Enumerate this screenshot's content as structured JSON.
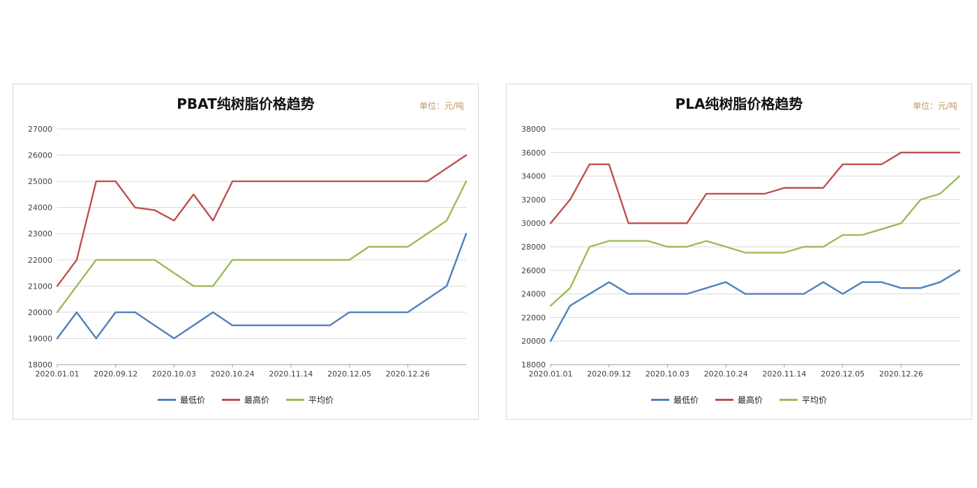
{
  "colors": {
    "unit_text": "#C09A5E",
    "gridline": "#d9d9d9",
    "axis_line": "#9e9e9e",
    "series_min": "#4F81BD",
    "series_max": "#C0504D",
    "series_avg": "#9BBB59"
  },
  "chart_data": [
    {
      "type": "line",
      "title": "PBAT纯树脂价格趋势",
      "unit_label": "单位：元/吨",
      "categories": [
        "2020.01.01",
        "2020.09.12",
        "2020.10.03",
        "2020.10.24",
        "2020.11.14",
        "2020.12.05",
        "2020.12.26"
      ],
      "tick_every": 3,
      "n_points": 22,
      "ylim": [
        18000,
        27000
      ],
      "ytick_step": 1000,
      "grid": true,
      "legend_position": "bottom",
      "series": [
        {
          "name": "最低价",
          "color": "#4F81BD",
          "values": [
            19000,
            20000,
            19000,
            20000,
            20000,
            19500,
            19000,
            19500,
            20000,
            19500,
            19500,
            19500,
            19500,
            19500,
            19500,
            20000,
            20000,
            20000,
            20000,
            20500,
            21000,
            23000
          ]
        },
        {
          "name": "最高价",
          "color": "#C0504D",
          "values": [
            21000,
            22000,
            25000,
            25000,
            24000,
            23900,
            23500,
            24500,
            23500,
            25000,
            25000,
            25000,
            25000,
            25000,
            25000,
            25000,
            25000,
            25000,
            25000,
            25000,
            25500,
            26000
          ]
        },
        {
          "name": "平均价",
          "color": "#9BBB59",
          "values": [
            20000,
            21000,
            22000,
            22000,
            22000,
            22000,
            21500,
            21000,
            21000,
            22000,
            22000,
            22000,
            22000,
            22000,
            22000,
            22000,
            22500,
            22500,
            22500,
            23000,
            23500,
            25000
          ]
        }
      ]
    },
    {
      "type": "line",
      "title": "PLA纯树脂价格趋势",
      "unit_label": "单位：元/吨",
      "categories": [
        "2020.01.01",
        "2020.09.12",
        "2020.10.03",
        "2020.10.24",
        "2020.11.14",
        "2020.12.05",
        "2020.12.26"
      ],
      "tick_every": 3,
      "n_points": 22,
      "ylim": [
        18000,
        38000
      ],
      "ytick_step": 2000,
      "grid": true,
      "legend_position": "bottom",
      "series": [
        {
          "name": "最低价",
          "color": "#4F81BD",
          "values": [
            20000,
            23000,
            24000,
            25000,
            24000,
            24000,
            24000,
            24000,
            24500,
            25000,
            24000,
            24000,
            24000,
            24000,
            25000,
            24000,
            25000,
            25000,
            24500,
            24500,
            25000,
            26000
          ]
        },
        {
          "name": "最高价",
          "color": "#C0504D",
          "values": [
            30000,
            32000,
            35000,
            35000,
            30000,
            30000,
            30000,
            30000,
            32500,
            32500,
            32500,
            32500,
            33000,
            33000,
            33000,
            35000,
            35000,
            35000,
            36000,
            36000,
            36000,
            36000
          ]
        },
        {
          "name": "平均价",
          "color": "#9BBB59",
          "values": [
            23000,
            24500,
            28000,
            28500,
            28500,
            28500,
            28000,
            28000,
            28500,
            28000,
            27500,
            27500,
            27500,
            28000,
            28000,
            29000,
            29000,
            29500,
            30000,
            32000,
            32500,
            34000
          ]
        }
      ]
    }
  ]
}
